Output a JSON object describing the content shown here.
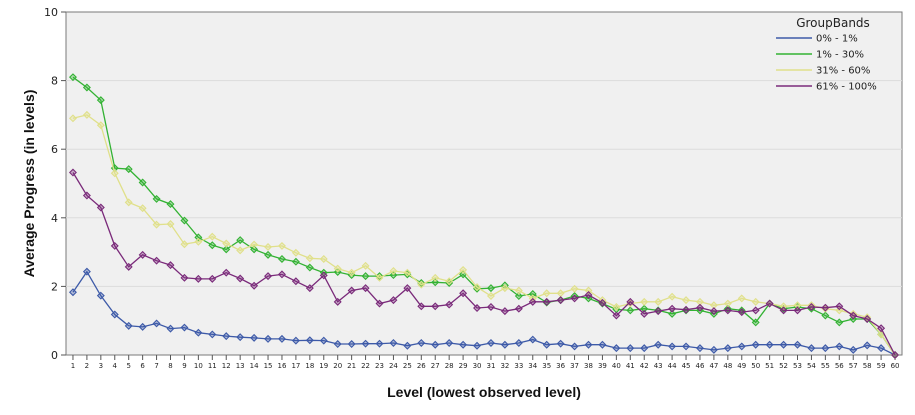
{
  "chart_data": {
    "type": "line",
    "title": "",
    "xlabel": "Level (lowest observed level)",
    "ylabel": "Average Progress (in levels)",
    "ylim": [
      0,
      10
    ],
    "yticks": [
      0,
      2,
      4,
      6,
      8,
      10
    ],
    "grid": true,
    "legend": {
      "title": "GroupBands",
      "placement": "top-right"
    },
    "x": [
      1,
      2,
      3,
      4,
      5,
      6,
      7,
      8,
      9,
      10,
      11,
      12,
      13,
      14,
      15,
      16,
      17,
      18,
      19,
      20,
      21,
      22,
      23,
      24,
      25,
      26,
      27,
      28,
      29,
      30,
      31,
      32,
      33,
      34,
      35,
      36,
      37,
      38,
      39,
      40,
      41,
      42,
      43,
      44,
      45,
      46,
      47,
      48,
      49,
      50,
      51,
      52,
      53,
      54,
      55,
      56,
      57,
      58,
      59,
      60
    ],
    "series": [
      {
        "name": "0% - 1%",
        "color": "#3d5aa8",
        "values": [
          1.83,
          2.43,
          1.73,
          1.18,
          0.85,
          0.82,
          0.92,
          0.77,
          0.8,
          0.65,
          0.6,
          0.55,
          0.52,
          0.5,
          0.47,
          0.47,
          0.42,
          0.43,
          0.42,
          0.32,
          0.32,
          0.33,
          0.33,
          0.35,
          0.27,
          0.35,
          0.3,
          0.35,
          0.3,
          0.27,
          0.35,
          0.3,
          0.35,
          0.45,
          0.3,
          0.33,
          0.25,
          0.3,
          0.3,
          0.2,
          0.2,
          0.2,
          0.3,
          0.25,
          0.25,
          0.2,
          0.15,
          0.2,
          0.25,
          0.3,
          0.3,
          0.3,
          0.3,
          0.2,
          0.2,
          0.25,
          0.15,
          0.28,
          0.2,
          0.0
        ]
      },
      {
        "name": "1% - 30%",
        "color": "#33b233",
        "values": [
          8.1,
          7.8,
          7.43,
          5.45,
          5.42,
          5.03,
          4.55,
          4.4,
          3.92,
          3.43,
          3.2,
          3.08,
          3.35,
          3.08,
          2.92,
          2.8,
          2.72,
          2.55,
          2.4,
          2.42,
          2.33,
          2.3,
          2.3,
          2.33,
          2.35,
          2.1,
          2.12,
          2.1,
          2.35,
          1.93,
          1.95,
          2.03,
          1.72,
          1.78,
          1.53,
          1.6,
          1.72,
          1.65,
          1.5,
          1.33,
          1.3,
          1.35,
          1.3,
          1.2,
          1.3,
          1.3,
          1.2,
          1.35,
          1.3,
          0.95,
          1.5,
          1.35,
          1.4,
          1.35,
          1.15,
          0.95,
          1.05,
          1.05,
          0.6,
          0.0
        ]
      },
      {
        "name": "31% - 60%",
        "color": "#e0e08a",
        "values": [
          6.9,
          7.0,
          6.7,
          5.3,
          4.45,
          4.28,
          3.8,
          3.82,
          3.23,
          3.3,
          3.45,
          3.25,
          3.05,
          3.22,
          3.15,
          3.18,
          2.98,
          2.82,
          2.8,
          2.52,
          2.4,
          2.6,
          2.25,
          2.45,
          2.4,
          2.05,
          2.25,
          2.15,
          2.48,
          1.98,
          1.72,
          1.95,
          1.88,
          1.65,
          1.8,
          1.8,
          1.93,
          1.88,
          1.6,
          1.4,
          1.5,
          1.55,
          1.55,
          1.7,
          1.6,
          1.55,
          1.45,
          1.5,
          1.65,
          1.55,
          1.5,
          1.42,
          1.45,
          1.45,
          1.35,
          1.3,
          1.2,
          1.1,
          0.6,
          0.0
        ]
      },
      {
        "name": "61% - 100%",
        "color": "#7a2a7a",
        "values": [
          5.32,
          4.65,
          4.3,
          3.18,
          2.57,
          2.92,
          2.75,
          2.62,
          2.25,
          2.22,
          2.22,
          2.4,
          2.23,
          2.02,
          2.3,
          2.35,
          2.15,
          1.95,
          2.32,
          1.55,
          1.88,
          1.95,
          1.5,
          1.6,
          1.95,
          1.42,
          1.42,
          1.47,
          1.8,
          1.37,
          1.4,
          1.28,
          1.35,
          1.55,
          1.55,
          1.6,
          1.65,
          1.75,
          1.52,
          1.15,
          1.55,
          1.2,
          1.28,
          1.35,
          1.32,
          1.38,
          1.28,
          1.3,
          1.25,
          1.3,
          1.5,
          1.3,
          1.3,
          1.4,
          1.38,
          1.42,
          1.15,
          1.05,
          0.78,
          0.0
        ]
      }
    ]
  }
}
